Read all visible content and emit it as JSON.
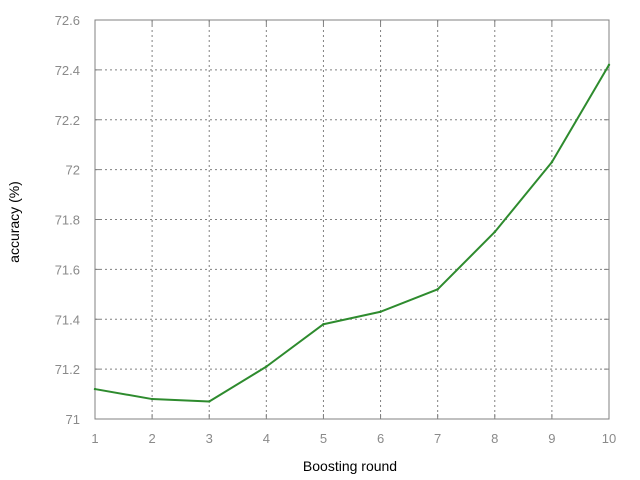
{
  "chart_data": {
    "type": "line",
    "title": "",
    "xlabel": "Boosting round",
    "ylabel": "accuracy (%)",
    "x": [
      1,
      2,
      3,
      4,
      5,
      6,
      7,
      8,
      9,
      10
    ],
    "xticks": [
      "1",
      "2",
      "3",
      "4",
      "5",
      "6",
      "7",
      "8",
      "9",
      "10"
    ],
    "yticks": [
      "71",
      "71.2",
      "71.4",
      "71.6",
      "71.8",
      "72",
      "72.2",
      "72.4",
      "72.6"
    ],
    "xlim": [
      1,
      10
    ],
    "ylim": [
      71,
      72.6
    ],
    "grid": true,
    "legend": "none",
    "series": [
      {
        "color": "#2e8b2e",
        "values": [
          71.12,
          71.08,
          71.07,
          71.21,
          71.38,
          71.43,
          71.52,
          71.75,
          72.03,
          72.42
        ]
      }
    ]
  }
}
